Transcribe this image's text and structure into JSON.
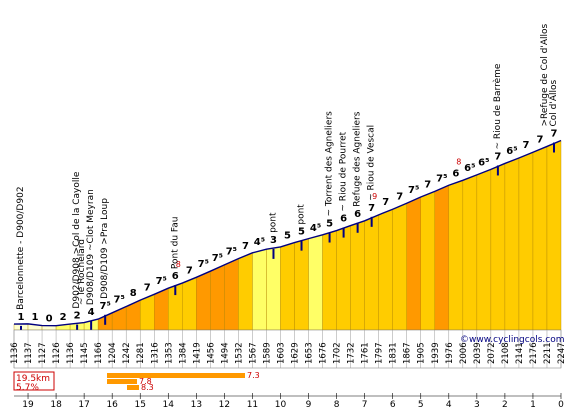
{
  "chart_data": {
    "type": "bar",
    "subtype": "cycling-climb-profile",
    "total_km": 19.5,
    "km_marks": [
      19,
      18,
      17,
      16,
      15,
      14,
      13,
      12,
      11,
      10,
      9,
      8,
      7,
      6,
      5,
      4,
      3,
      2,
      1,
      0
    ],
    "altitudes": [
      1136,
      1137,
      1127,
      1126,
      1136,
      1145,
      1166,
      1204,
      1242,
      1281,
      1316,
      1353,
      1384,
      1419,
      1456,
      1494,
      1532,
      1567,
      1589,
      1603,
      1629,
      1653,
      1676,
      1702,
      1732,
      1761,
      1797,
      1831,
      1867,
      1905,
      1939,
      1976,
      2006,
      2039,
      2072,
      2108,
      2141,
      2176,
      2211,
      2247
    ],
    "grades": [
      "1",
      "1",
      "0",
      "2",
      "2",
      "4",
      "7⁵",
      "7⁵",
      "8",
      "7",
      "7⁵",
      "6",
      "7",
      "7⁵",
      "7⁵",
      "7⁵",
      "7",
      "4⁵",
      "3",
      "5",
      "5",
      "4⁵",
      "5",
      "6",
      "6",
      "7",
      "7",
      "7",
      "7⁵",
      "7",
      "7⁵",
      "6",
      "6⁵",
      "6⁵",
      "7",
      "6⁵",
      "7",
      "7",
      "7"
    ],
    "max_grades": [
      {
        "segment": 11,
        "value": "8"
      },
      {
        "segment": 25,
        "value": "9"
      },
      {
        "segment": 31,
        "value": "8"
      }
    ],
    "landmarks": [
      {
        "segment": 0,
        "label": "Barcelonnette - D900/D902"
      },
      {
        "segment": 4,
        "label": "D902/D908 >Col de la Cayolle"
      },
      {
        "segment": 5,
        "label": "~ le Rochelard"
      },
      {
        "segment": 5,
        "label": "D908/D109 ~Clot Meyran"
      },
      {
        "segment": 6,
        "label": "D908/D109 >Pra Loup"
      },
      {
        "segment": 11,
        "label": "Pont du Fau"
      },
      {
        "segment": 18,
        "label": "pont"
      },
      {
        "segment": 20,
        "label": "pont"
      },
      {
        "segment": 22,
        "label": "~ Torrent des Agneliers"
      },
      {
        "segment": 23,
        "label": "~ Riou de Pourret"
      },
      {
        "segment": 24,
        "label": "Refuge des Agneliers"
      },
      {
        "segment": 25,
        "label": "~ Riou de Vescal"
      },
      {
        "segment": 34,
        "label": "~ Riou de Barrème"
      },
      {
        "segment": 38,
        "label": ">Refuge de Col d'Allos"
      },
      {
        "segment": 38,
        "label": "Col d'Allos"
      }
    ],
    "legend": {
      "distance": "19.5km",
      "average_grade": "5.7%",
      "bars": [
        {
          "value": "7.3",
          "color": "#ff9900"
        },
        {
          "value": "7.8",
          "color": "#ff9900"
        },
        {
          "value": "8.3",
          "color": "#ff9900"
        }
      ]
    },
    "credit": "©www.cyclingcols.com",
    "colors": {
      "low": "#ffffd0",
      "mid": "#ffff66",
      "high": "#ffcc00",
      "steep": "#ff9900",
      "sky": "#ffffff"
    }
  }
}
